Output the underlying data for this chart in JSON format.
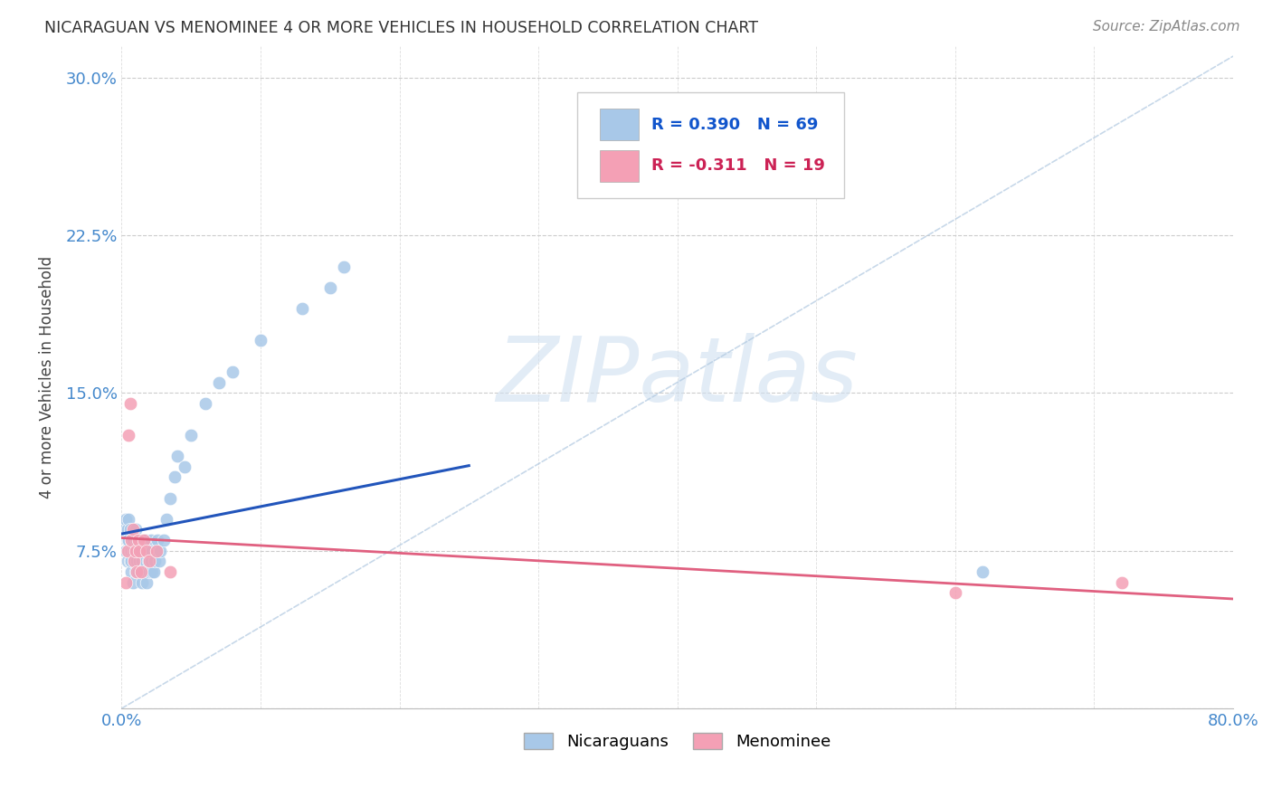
{
  "title": "NICARAGUAN VS MENOMINEE 4 OR MORE VEHICLES IN HOUSEHOLD CORRELATION CHART",
  "source": "Source: ZipAtlas.com",
  "ylabel": "4 or more Vehicles in Household",
  "xlim": [
    0.0,
    0.8
  ],
  "ylim": [
    0.0,
    0.315
  ],
  "yticks": [
    0.0,
    0.075,
    0.15,
    0.225,
    0.3
  ],
  "ytick_labels": [
    "",
    "7.5%",
    "15.0%",
    "22.5%",
    "30.0%"
  ],
  "xticks": [
    0.0,
    0.1,
    0.2,
    0.3,
    0.4,
    0.5,
    0.6,
    0.7,
    0.8
  ],
  "xtick_labels": [
    "0.0%",
    "",
    "",
    "",
    "",
    "",
    "",
    "",
    "80.0%"
  ],
  "blue_R": 0.39,
  "blue_N": 69,
  "pink_R": -0.311,
  "pink_N": 19,
  "blue_color": "#a8c8e8",
  "pink_color": "#f4a0b5",
  "blue_line_color": "#2255bb",
  "pink_line_color": "#e06080",
  "diag_line_color": "#b0c8e0",
  "watermark_color": "#d0e0f0",
  "legend_label_blue": "Nicaraguans",
  "legend_label_pink": "Menominee",
  "blue_scatter_x": [
    0.002,
    0.003,
    0.003,
    0.004,
    0.004,
    0.004,
    0.005,
    0.005,
    0.005,
    0.006,
    0.006,
    0.006,
    0.007,
    0.007,
    0.007,
    0.007,
    0.008,
    0.008,
    0.008,
    0.009,
    0.009,
    0.01,
    0.01,
    0.01,
    0.011,
    0.011,
    0.012,
    0.012,
    0.013,
    0.013,
    0.014,
    0.014,
    0.015,
    0.015,
    0.015,
    0.016,
    0.016,
    0.017,
    0.017,
    0.018,
    0.018,
    0.019,
    0.02,
    0.02,
    0.021,
    0.021,
    0.022,
    0.022,
    0.023,
    0.024,
    0.025,
    0.026,
    0.027,
    0.028,
    0.03,
    0.032,
    0.035,
    0.038,
    0.04,
    0.045,
    0.05,
    0.06,
    0.07,
    0.08,
    0.1,
    0.13,
    0.15,
    0.16,
    0.62
  ],
  "blue_scatter_y": [
    0.085,
    0.075,
    0.09,
    0.07,
    0.08,
    0.085,
    0.075,
    0.08,
    0.09,
    0.07,
    0.075,
    0.085,
    0.065,
    0.07,
    0.075,
    0.08,
    0.06,
    0.075,
    0.08,
    0.07,
    0.075,
    0.065,
    0.075,
    0.085,
    0.07,
    0.08,
    0.065,
    0.075,
    0.07,
    0.08,
    0.065,
    0.075,
    0.06,
    0.07,
    0.08,
    0.065,
    0.075,
    0.07,
    0.08,
    0.06,
    0.075,
    0.07,
    0.065,
    0.075,
    0.07,
    0.08,
    0.065,
    0.075,
    0.065,
    0.07,
    0.075,
    0.08,
    0.07,
    0.075,
    0.08,
    0.09,
    0.1,
    0.11,
    0.12,
    0.115,
    0.13,
    0.145,
    0.155,
    0.16,
    0.175,
    0.19,
    0.2,
    0.21,
    0.065
  ],
  "pink_scatter_x": [
    0.003,
    0.004,
    0.005,
    0.006,
    0.007,
    0.008,
    0.009,
    0.01,
    0.011,
    0.012,
    0.013,
    0.014,
    0.016,
    0.018,
    0.02,
    0.025,
    0.035,
    0.6,
    0.72
  ],
  "pink_scatter_y": [
    0.06,
    0.075,
    0.13,
    0.145,
    0.08,
    0.085,
    0.07,
    0.075,
    0.065,
    0.08,
    0.075,
    0.065,
    0.08,
    0.075,
    0.07,
    0.075,
    0.065,
    0.055,
    0.06
  ]
}
